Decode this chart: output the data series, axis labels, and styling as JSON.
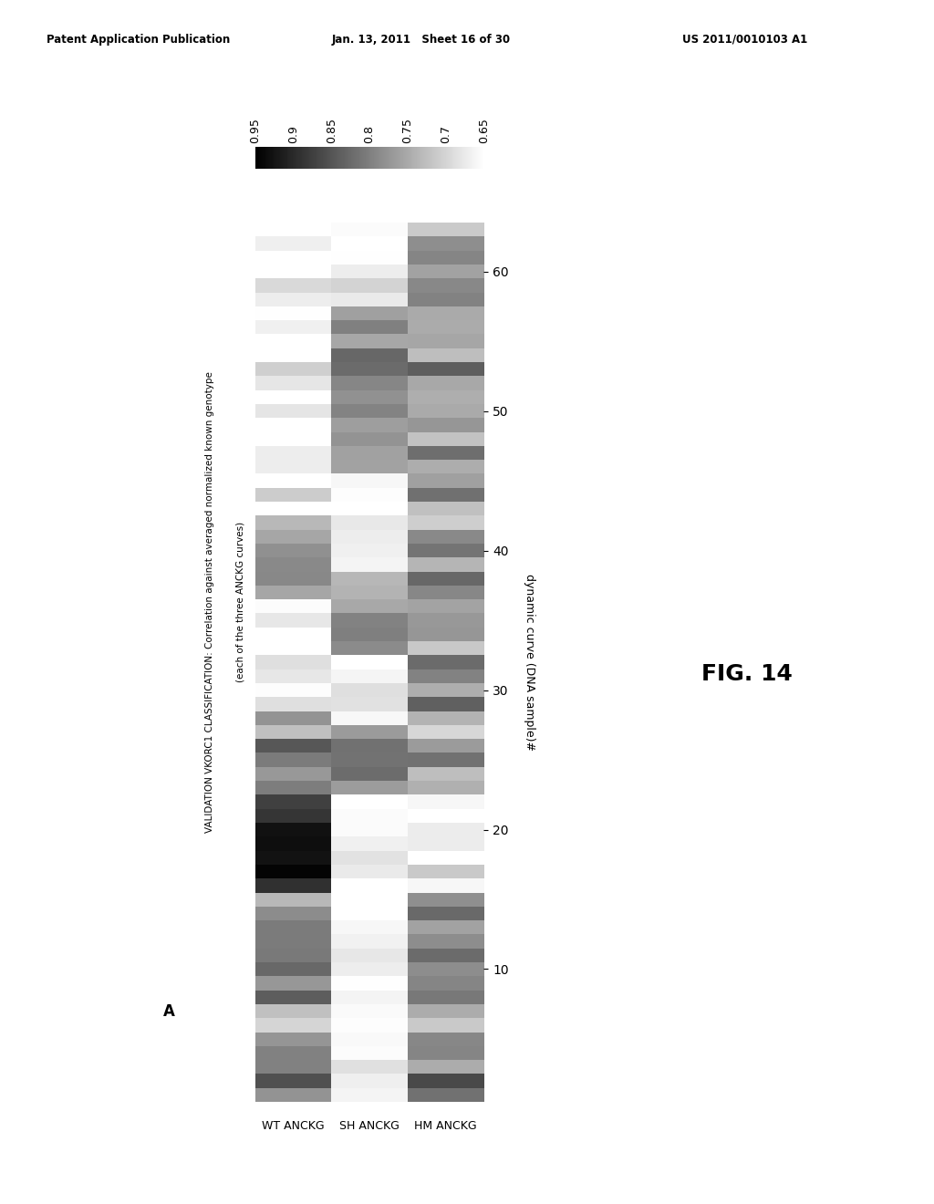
{
  "title_line1": "VALIDATION VKORC1 CLASSIFICATION: Correlation against averaged normalized known genotype",
  "title_line2": "(each of the three ANCKG curves)",
  "panel_label": "A",
  "xlabel": "dynamic curve (DNA sample)#",
  "row_labels": [
    "WT ANCKG",
    "SH ANCKG",
    "HM ANCKG"
  ],
  "colorbar_ticks": [
    0.95,
    0.9,
    0.85,
    0.8,
    0.75,
    0.7,
    0.65
  ],
  "n_samples": 63,
  "xtick_positions": [
    10,
    20,
    30,
    40,
    50,
    60
  ],
  "header1": "Patent Application Publication",
  "header2": "Jan. 13, 2011   Sheet 16 of 30",
  "header3": "US 2011/0010103 A1",
  "fig_label": "FIG. 14",
  "vmin": 0.65,
  "vmax": 0.95,
  "background_color": "#ffffff"
}
